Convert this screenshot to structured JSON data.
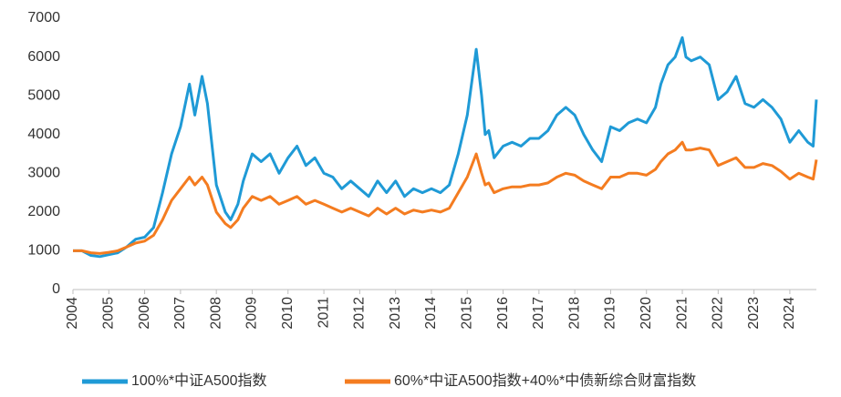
{
  "chart_data": {
    "type": "line",
    "x": [
      2004,
      2004.25,
      2004.5,
      2004.75,
      2005,
      2005.25,
      2005.5,
      2005.75,
      2006,
      2006.25,
      2006.5,
      2006.75,
      2007,
      2007.25,
      2007.4,
      2007.6,
      2007.75,
      2008,
      2008.25,
      2008.4,
      2008.6,
      2008.75,
      2009,
      2009.25,
      2009.5,
      2009.75,
      2010,
      2010.25,
      2010.5,
      2010.75,
      2011,
      2011.25,
      2011.5,
      2011.75,
      2012,
      2012.25,
      2012.5,
      2012.75,
      2013,
      2013.25,
      2013.5,
      2013.75,
      2014,
      2014.25,
      2014.5,
      2014.75,
      2015,
      2015.25,
      2015.4,
      2015.5,
      2015.6,
      2015.75,
      2016,
      2016.25,
      2016.5,
      2016.75,
      2017,
      2017.25,
      2017.5,
      2017.75,
      2018,
      2018.25,
      2018.5,
      2018.75,
      2019,
      2019.25,
      2019.5,
      2019.75,
      2020,
      2020.25,
      2020.4,
      2020.6,
      2020.8,
      2021,
      2021.1,
      2021.25,
      2021.5,
      2021.75,
      2022,
      2022.25,
      2022.5,
      2022.75,
      2023,
      2023.25,
      2023.5,
      2023.75,
      2024,
      2024.25,
      2024.5,
      2024.65,
      2024.74
    ],
    "series": [
      {
        "name": "100%*中证A500指数",
        "color": "#1f9ad6",
        "values": [
          1000,
          1000,
          880,
          850,
          900,
          950,
          1100,
          1300,
          1350,
          1600,
          2500,
          3500,
          4200,
          5300,
          4500,
          5500,
          4800,
          2700,
          2000,
          1800,
          2200,
          2800,
          3500,
          3300,
          3500,
          3000,
          3400,
          3700,
          3200,
          3400,
          3000,
          2900,
          2600,
          2800,
          2600,
          2400,
          2800,
          2500,
          2800,
          2400,
          2600,
          2500,
          2600,
          2500,
          2700,
          3500,
          4500,
          6200,
          5000,
          4000,
          4100,
          3400,
          3700,
          3800,
          3700,
          3900,
          3900,
          4100,
          4500,
          4700,
          4500,
          4000,
          3600,
          3300,
          4200,
          4100,
          4300,
          4400,
          4300,
          4700,
          5300,
          5800,
          6000,
          6500,
          6000,
          5900,
          6000,
          5800,
          4900,
          5100,
          5500,
          4800,
          4700,
          4900,
          4700,
          4400,
          3800,
          4100,
          3800,
          3700,
          4900
        ]
      },
      {
        "name": "60%*中证A500指数+40%*中债新综合财富指数",
        "color": "#f47c20",
        "values": [
          1000,
          1000,
          950,
          930,
          960,
          1000,
          1100,
          1200,
          1250,
          1400,
          1800,
          2300,
          2600,
          2900,
          2700,
          2900,
          2700,
          2000,
          1700,
          1600,
          1800,
          2100,
          2400,
          2300,
          2400,
          2200,
          2300,
          2400,
          2200,
          2300,
          2200,
          2100,
          2000,
          2100,
          2000,
          1900,
          2100,
          1950,
          2100,
          1950,
          2050,
          2000,
          2050,
          2000,
          2100,
          2500,
          2900,
          3500,
          3000,
          2700,
          2750,
          2500,
          2600,
          2650,
          2650,
          2700,
          2700,
          2750,
          2900,
          3000,
          2950,
          2800,
          2700,
          2600,
          2900,
          2900,
          3000,
          3000,
          2950,
          3100,
          3300,
          3500,
          3600,
          3800,
          3600,
          3600,
          3650,
          3600,
          3200,
          3300,
          3400,
          3150,
          3150,
          3250,
          3200,
          3050,
          2850,
          3000,
          2900,
          2850,
          3350
        ]
      }
    ],
    "xlim": [
      2004,
      2024.74
    ],
    "xticks": [
      2004,
      2005,
      2006,
      2007,
      2008,
      2009,
      2010,
      2011,
      2012,
      2013,
      2014,
      2015,
      2016,
      2017,
      2018,
      2019,
      2020,
      2021,
      2022,
      2023,
      2024
    ],
    "ylim": [
      0,
      7000
    ],
    "yticks": [
      0,
      1000,
      2000,
      3000,
      4000,
      5000,
      6000,
      7000
    ],
    "grid": false,
    "legend": "bottom"
  }
}
